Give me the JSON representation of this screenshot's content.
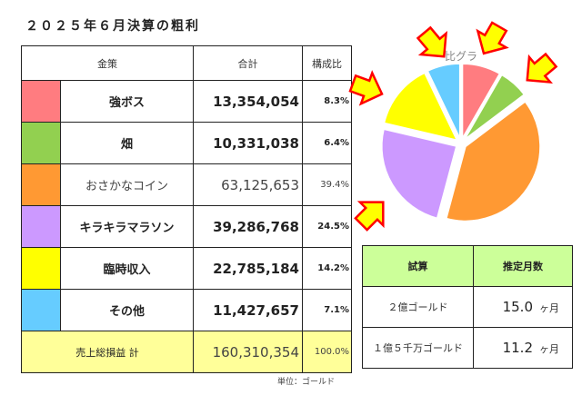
{
  "title": "２０２５年６月決算の粗利",
  "table": {
    "headers": [
      "金策",
      "合計",
      "構成比"
    ],
    "rows": [
      {
        "name": "強ボス",
        "total": "13,354,054",
        "ratio": "8.3%",
        "color": "#ff7c80",
        "value": 13354054
      },
      {
        "name": "畑",
        "total": "10,331,038",
        "ratio": "6.4%",
        "color": "#92d050",
        "value": 10331038
      },
      {
        "name": "おさかなコイン",
        "total": "63,125,653",
        "ratio": "39.4%",
        "color": "#ff9933",
        "value": 63125653
      },
      {
        "name": "キラキラマラソン",
        "total": "39,286,768",
        "ratio": "24.5%",
        "color": "#cc99ff",
        "value": 39286768
      },
      {
        "name": "臨時収入",
        "total": "22,785,184",
        "ratio": "14.2%",
        "color": "#ffff00",
        "value": 22785184
      },
      {
        "name": "その他",
        "total": "11,427,657",
        "ratio": "7.1%",
        "color": "#66ccff",
        "value": 11427657
      }
    ],
    "total": {
      "label": "売上総損益 計",
      "total": "160,310,354",
      "ratio": "100.0%"
    }
  },
  "chart_data": {
    "type": "pie",
    "title_visible": "比グラ",
    "categories": [
      "強ボス",
      "畑",
      "おさかなコイン",
      "キラキラマラソン",
      "臨時収入",
      "その他"
    ],
    "values": [
      8.3,
      6.4,
      39.4,
      24.5,
      14.2,
      7.1
    ],
    "colors": [
      "#ff7c80",
      "#92d050",
      "#ff9933",
      "#cc99ff",
      "#ffff00",
      "#66ccff"
    ],
    "exploded": true
  },
  "estimate": {
    "headers": [
      "試算",
      "推定月数"
    ],
    "rows": [
      {
        "label": "２億ゴールド",
        "months": "15.0",
        "unit": "ヶ月"
      },
      {
        "label": "１億５千万ゴールド",
        "months": "11.2",
        "unit": "ヶ月"
      }
    ]
  },
  "note": "単位：ゴールド",
  "arrow_colors": {
    "fill": "#ffff00",
    "stroke": "#ff0000"
  }
}
